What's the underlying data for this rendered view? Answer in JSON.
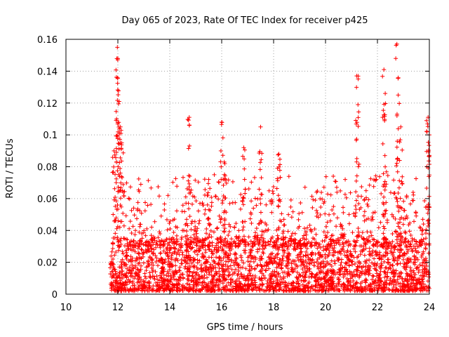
{
  "chart_data": {
    "type": "scatter",
    "title": "Day 065 of 2023, Rate Of TEC Index for receiver p425",
    "xlabel": "GPS time / hours",
    "ylabel": "ROTI / TECUs",
    "xlim": [
      10,
      24
    ],
    "ylim": [
      0,
      0.16
    ],
    "xticks": [
      "10",
      "12",
      "14",
      "16",
      "18",
      "20",
      "22",
      "24"
    ],
    "yticks": [
      "0",
      "0.02",
      "0.04",
      "0.06",
      "0.08",
      "0.1",
      "0.12",
      "0.14",
      "0.16"
    ],
    "grid": true,
    "marker": "+",
    "color": "#ff0000",
    "data_start_hour": 11.7,
    "data_end_hour": 24.0,
    "bulk_range": [
      0.002,
      0.035
    ],
    "peaks": [
      {
        "x": 11.85,
        "y": 0.09
      },
      {
        "x": 11.95,
        "y": 0.11
      },
      {
        "x": 11.98,
        "y": 0.155
      },
      {
        "x": 12.0,
        "y": 0.148
      },
      {
        "x": 12.05,
        "y": 0.121
      },
      {
        "x": 12.1,
        "y": 0.105
      },
      {
        "x": 12.15,
        "y": 0.095
      },
      {
        "x": 14.75,
        "y": 0.111
      },
      {
        "x": 15.5,
        "y": 0.072
      },
      {
        "x": 16.0,
        "y": 0.108
      },
      {
        "x": 16.1,
        "y": 0.083
      },
      {
        "x": 16.85,
        "y": 0.092
      },
      {
        "x": 17.5,
        "y": 0.105
      },
      {
        "x": 18.2,
        "y": 0.088
      },
      {
        "x": 21.2,
        "y": 0.137
      },
      {
        "x": 21.25,
        "y": 0.119
      },
      {
        "x": 22.25,
        "y": 0.141
      },
      {
        "x": 22.3,
        "y": 0.126
      },
      {
        "x": 22.75,
        "y": 0.157
      },
      {
        "x": 22.8,
        "y": 0.125
      },
      {
        "x": 22.9,
        "y": 0.105
      },
      {
        "x": 23.95,
        "y": 0.111
      },
      {
        "x": 24.0,
        "y": 0.1
      }
    ]
  }
}
